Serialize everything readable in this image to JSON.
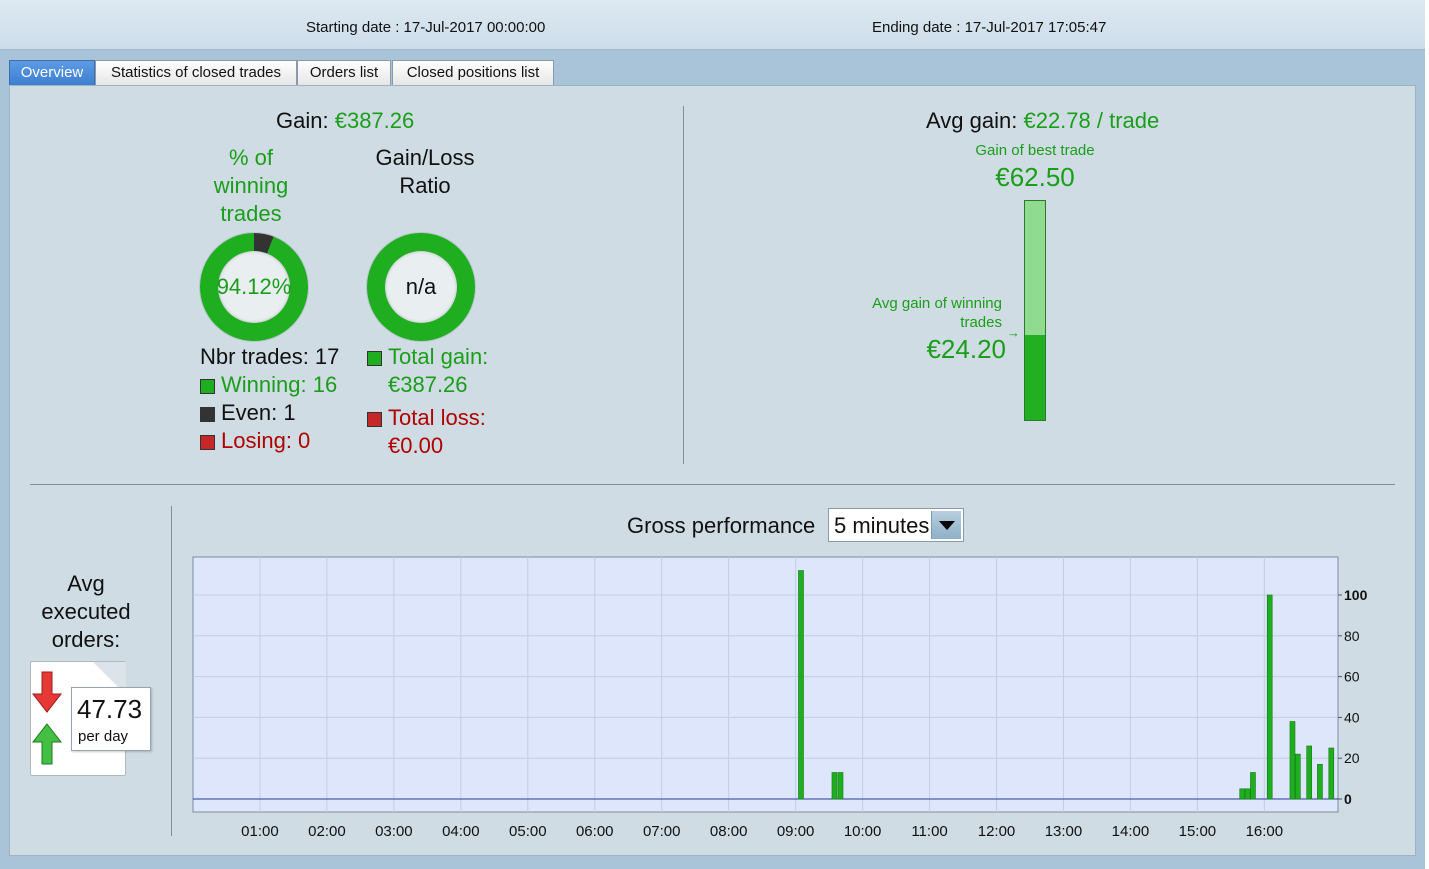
{
  "header": {
    "starting_date": "Starting date : 17-Jul-2017 00:00:00",
    "ending_date": "Ending date : 17-Jul-2017 17:05:47"
  },
  "tabs": [
    {
      "label": "Overview",
      "active": true
    },
    {
      "label": "Statistics of closed trades",
      "active": false
    },
    {
      "label": "Orders list",
      "active": false
    },
    {
      "label": "Closed positions list",
      "active": false
    }
  ],
  "overview": {
    "gain_label": "Gain:",
    "gain_value": "€387.26",
    "winning_title": "% of winning trades",
    "winning_pct_text": "94.12%",
    "winning_pct": 94.12,
    "even_pct": 5.88,
    "ratio_title": "Gain/Loss Ratio",
    "ratio_value": "n/a",
    "nbr_trades": "Nbr trades: 17",
    "winning": "Winning: 16",
    "even": "Even: 1",
    "losing": "Losing: 0",
    "total_gain_label": "Total gain:",
    "total_gain_value": "€387.26",
    "total_loss_label": "Total loss:",
    "total_loss_value": "€0.00",
    "avg_gain_label": "Avg gain:",
    "avg_gain_value": "€22.78 / trade",
    "best_trade_label": "Gain of best trade",
    "best_trade_value": "€62.50",
    "avg_winning_label": "Avg gain of winning trades",
    "avg_winning_value": "€24.20",
    "best_trade_amount": 62.5,
    "avg_winning_amount": 24.2,
    "avg_orders_label": "Avg executed orders:",
    "avg_orders_value": "47.73",
    "avg_orders_unit": "per day",
    "gross_perf_label": "Gross performance",
    "interval_value": "5 minutes"
  },
  "colors": {
    "green": "#1a9e1a",
    "bar_green": "#1fae1f",
    "dark": "#333333",
    "red": "#c62828",
    "chart_bg": "#dde6fa"
  },
  "chart_data": {
    "type": "bar",
    "xlabel": "",
    "ylabel": "",
    "x_ticks": [
      "01:00",
      "02:00",
      "03:00",
      "04:00",
      "05:00",
      "06:00",
      "07:00",
      "08:00",
      "09:00",
      "10:00",
      "11:00",
      "12:00",
      "13:00",
      "14:00",
      "15:00",
      "16:00"
    ],
    "y_ticks": [
      0,
      20,
      40,
      60,
      80,
      100
    ],
    "ylim": [
      0,
      120
    ],
    "xlim_hours": [
      0,
      17.1
    ],
    "grid": true,
    "series": [
      {
        "bars": [
          {
            "time_hours": 9.08,
            "value": 112
          },
          {
            "time_hours": 9.58,
            "value": 13
          },
          {
            "time_hours": 9.67,
            "value": 13
          },
          {
            "time_hours": 15.67,
            "value": 5
          },
          {
            "time_hours": 15.75,
            "value": 5
          },
          {
            "time_hours": 15.83,
            "value": 13
          },
          {
            "time_hours": 16.08,
            "value": 100
          },
          {
            "time_hours": 16.42,
            "value": 38
          },
          {
            "time_hours": 16.5,
            "value": 22
          },
          {
            "time_hours": 16.67,
            "value": 26
          },
          {
            "time_hours": 16.83,
            "value": 17
          },
          {
            "time_hours": 17.0,
            "value": 25
          }
        ]
      }
    ]
  }
}
